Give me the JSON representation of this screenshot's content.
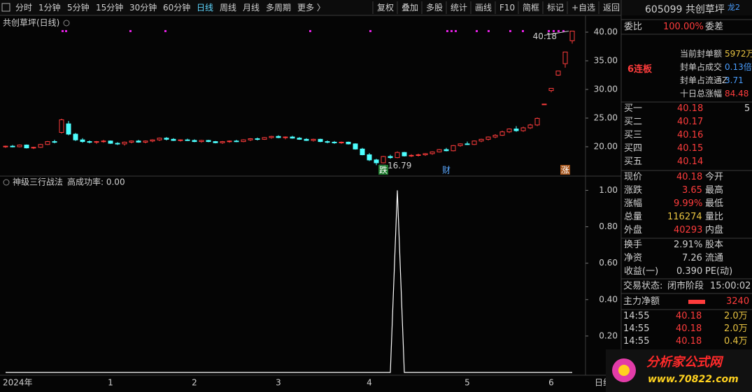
{
  "toolbar": {
    "periods": [
      "分时",
      "1分钟",
      "5分钟",
      "15分钟",
      "30分钟",
      "60分钟",
      "日线",
      "周线",
      "月线",
      "多周期",
      "更多 〉"
    ],
    "tools": [
      "复权",
      "叠加",
      "多股",
      "统计",
      "画线",
      "F10",
      "简框",
      "标记",
      "+自选",
      "返回"
    ]
  },
  "chart_data": [
    {
      "type": "candlestick",
      "title": "共创草坪(日线)",
      "ohlc": [
        [
          20.0,
          20.2,
          19.8,
          20.1
        ],
        [
          20.1,
          20.3,
          19.9,
          20.0
        ],
        [
          20.0,
          20.4,
          19.9,
          20.3
        ],
        [
          20.3,
          20.4,
          19.7,
          19.8
        ],
        [
          19.8,
          20.0,
          19.6,
          19.9
        ],
        [
          19.9,
          20.5,
          19.8,
          20.4
        ],
        [
          20.4,
          21.0,
          20.3,
          20.9
        ],
        [
          20.9,
          21.2,
          20.6,
          20.8
        ],
        [
          22.5,
          24.9,
          22.3,
          24.7
        ],
        [
          24.0,
          24.5,
          22.0,
          22.2
        ],
        [
          22.2,
          22.4,
          21.0,
          21.2
        ],
        [
          21.2,
          21.5,
          20.7,
          20.9
        ],
        [
          20.9,
          21.1,
          20.6,
          20.8
        ],
        [
          20.8,
          21.0,
          20.5,
          20.9
        ],
        [
          20.9,
          21.2,
          20.7,
          21.0
        ],
        [
          21.0,
          21.1,
          20.5,
          20.6
        ],
        [
          20.6,
          20.8,
          20.3,
          20.5
        ],
        [
          20.5,
          20.9,
          20.2,
          20.8
        ],
        [
          20.8,
          21.1,
          20.6,
          21.0
        ],
        [
          21.0,
          21.2,
          20.7,
          20.8
        ],
        [
          20.8,
          21.1,
          20.6,
          21.0
        ],
        [
          21.0,
          21.3,
          20.8,
          21.2
        ],
        [
          21.2,
          21.6,
          21.0,
          21.5
        ],
        [
          21.5,
          21.7,
          21.1,
          21.3
        ],
        [
          21.3,
          21.5,
          21.0,
          21.1
        ],
        [
          21.1,
          21.3,
          20.9,
          21.2
        ],
        [
          21.2,
          21.4,
          21.0,
          21.1
        ],
        [
          21.1,
          21.3,
          20.8,
          20.9
        ],
        [
          20.9,
          21.2,
          20.7,
          21.1
        ],
        [
          21.1,
          21.2,
          20.8,
          20.9
        ],
        [
          20.9,
          21.0,
          20.6,
          20.7
        ],
        [
          20.7,
          21.0,
          20.5,
          20.9
        ],
        [
          20.9,
          21.1,
          20.7,
          21.0
        ],
        [
          21.0,
          21.2,
          20.8,
          20.9
        ],
        [
          20.9,
          21.3,
          20.8,
          21.2
        ],
        [
          21.2,
          21.5,
          21.0,
          21.4
        ],
        [
          21.4,
          21.6,
          21.1,
          21.3
        ],
        [
          21.3,
          21.7,
          21.2,
          21.6
        ],
        [
          21.6,
          21.9,
          21.4,
          21.8
        ],
        [
          21.8,
          22.0,
          21.5,
          21.6
        ],
        [
          21.6,
          21.8,
          21.3,
          21.7
        ],
        [
          21.7,
          21.9,
          21.4,
          21.5
        ],
        [
          21.5,
          21.7,
          21.2,
          21.3
        ],
        [
          21.3,
          21.5,
          21.0,
          21.1
        ],
        [
          21.1,
          21.4,
          20.9,
          21.3
        ],
        [
          21.3,
          21.4,
          20.8,
          20.9
        ],
        [
          20.9,
          21.1,
          20.6,
          20.8
        ],
        [
          20.8,
          21.0,
          20.5,
          20.7
        ],
        [
          20.7,
          20.9,
          20.5,
          20.8
        ],
        [
          20.8,
          20.9,
          20.4,
          20.5
        ],
        [
          20.5,
          20.6,
          19.5,
          19.6
        ],
        [
          19.6,
          19.8,
          18.5,
          18.6
        ],
        [
          18.6,
          18.9,
          17.5,
          17.7
        ],
        [
          17.7,
          17.9,
          16.79,
          17.2
        ],
        [
          17.2,
          18.4,
          17.1,
          18.3
        ],
        [
          18.3,
          18.6,
          17.9,
          18.1
        ],
        [
          18.1,
          19.2,
          18.0,
          19.0
        ],
        [
          19.0,
          19.1,
          18.3,
          18.4
        ],
        [
          18.4,
          18.7,
          18.2,
          18.5
        ],
        [
          18.5,
          18.8,
          18.3,
          18.6
        ],
        [
          18.6,
          18.9,
          18.4,
          18.8
        ],
        [
          18.8,
          19.2,
          18.6,
          19.1
        ],
        [
          19.1,
          19.6,
          19.0,
          19.5
        ],
        [
          19.5,
          19.8,
          19.2,
          19.3
        ],
        [
          19.3,
          20.3,
          19.2,
          20.2
        ],
        [
          20.2,
          20.6,
          20.0,
          20.5
        ],
        [
          20.5,
          20.9,
          20.3,
          20.4
        ],
        [
          20.4,
          21.1,
          20.3,
          21.0
        ],
        [
          21.0,
          21.4,
          20.8,
          21.3
        ],
        [
          21.3,
          21.8,
          21.1,
          21.7
        ],
        [
          21.7,
          22.2,
          21.5,
          22.0
        ],
        [
          22.0,
          22.8,
          21.9,
          22.6
        ],
        [
          22.6,
          23.2,
          22.4,
          23.1
        ],
        [
          23.1,
          23.6,
          22.6,
          22.8
        ],
        [
          22.8,
          23.5,
          22.6,
          23.3
        ],
        [
          23.3,
          24.0,
          23.1,
          23.8
        ],
        [
          23.8,
          25.1,
          23.6,
          24.95
        ],
        [
          27.45,
          27.45,
          27.45,
          27.45
        ],
        [
          29.8,
          30.19,
          29.5,
          30.19
        ],
        [
          32.5,
          33.21,
          32.4,
          33.21
        ],
        [
          34.5,
          36.53,
          33.8,
          36.53
        ],
        [
          38.5,
          40.18,
          38.0,
          40.18
        ]
      ],
      "categories": [
        "2024年",
        null,
        null,
        null,
        null,
        null,
        null,
        null,
        null,
        null,
        null,
        null,
        null,
        null,
        null,
        "1",
        null,
        null,
        null,
        null,
        null,
        null,
        null,
        null,
        null,
        null,
        null,
        "2",
        null,
        null,
        null,
        null,
        null,
        null,
        null,
        null,
        null,
        null,
        null,
        "3",
        null,
        null,
        null,
        null,
        null,
        null,
        null,
        null,
        null,
        null,
        null,
        null,
        "4",
        null,
        null,
        null,
        null,
        null,
        null,
        null,
        null,
        null,
        null,
        null,
        null,
        null,
        "5",
        null,
        null,
        null,
        null,
        null,
        null,
        null,
        null,
        null,
        null,
        null,
        "6",
        null,
        null,
        null
      ],
      "corner_label": "日线",
      "up_color": "#ff3c3c",
      "down_color": "#4dffff",
      "ylim": [
        14.88,
        40.73
      ],
      "yticks": [
        {
          "value": 20,
          "label": "20.00"
        },
        {
          "value": 25,
          "label": "25.00"
        },
        {
          "value": 30,
          "label": "30.00"
        },
        {
          "value": 35,
          "label": "35.00"
        },
        {
          "value": 40,
          "label": "40.00"
        }
      ],
      "max_label": 40.18,
      "min_label": 16.79,
      "events": [
        "跌",
        "财",
        "涨"
      ]
    },
    {
      "type": "line",
      "title": "神级三行战法",
      "legend_text": "高成功率: 0.00",
      "color": "#ffffff",
      "values": [
        0,
        0,
        0,
        0,
        0,
        0,
        0,
        0,
        0,
        0,
        0,
        0,
        0,
        0,
        0,
        0,
        0,
        0,
        0,
        0,
        0,
        0,
        0,
        0,
        0,
        0,
        0,
        0,
        0,
        0,
        0,
        0,
        0,
        0,
        0,
        0,
        0,
        0,
        0,
        0,
        0,
        0,
        0,
        0,
        0,
        0,
        0,
        0,
        0,
        0,
        0,
        0,
        0,
        0,
        0,
        0,
        1,
        0,
        0,
        0,
        0,
        0,
        0,
        0,
        0,
        0,
        0,
        0,
        0,
        0,
        0,
        0,
        0,
        0,
        0,
        0,
        0,
        0,
        0,
        0,
        0,
        0
      ],
      "ylim": [
        0,
        1.04
      ],
      "yticks": [
        {
          "value": 0.2,
          "label": "0.20"
        },
        {
          "value": 0.4,
          "label": "0.40"
        },
        {
          "value": 0.6,
          "label": "0.60"
        },
        {
          "value": 0.8,
          "label": "0.80"
        },
        {
          "value": 1,
          "label": "1.00"
        }
      ]
    }
  ],
  "quote": {
    "code": "605099 共创草坪",
    "badge": "龙2",
    "weibi": [
      "委比",
      "100.00%",
      "委差"
    ],
    "streak": "6连板",
    "seal": [
      [
        "当前封单额",
        "5972万"
      ],
      [
        "封单占成交",
        "0.13倍"
      ],
      [
        "封单占流通Z",
        "3.71"
      ],
      [
        "十日总涨幅",
        "84.48"
      ]
    ],
    "book": [
      [
        "买一",
        "40.18",
        "5"
      ],
      [
        "买二",
        "40.17"
      ],
      [
        "买三",
        "40.16"
      ],
      [
        "买四",
        "40.15"
      ],
      [
        "买五",
        "40.14"
      ]
    ],
    "stats": [
      [
        "现价",
        "40.18",
        "今开"
      ],
      [
        "涨跌",
        "3.65",
        "最高"
      ],
      [
        "涨幅",
        "9.99%",
        "最低"
      ],
      [
        "总量",
        "116274",
        "量比"
      ],
      [
        "外盘",
        "40293",
        "内盘"
      ]
    ],
    "fund": [
      [
        "换手",
        "2.91%",
        "股本"
      ],
      [
        "净资",
        "7.26",
        "流通"
      ],
      [
        "收益(一)",
        "0.390",
        "PE(动)"
      ]
    ],
    "status": [
      "交易状态:",
      "闭市阶段",
      "15:00:02"
    ],
    "main_net": [
      "主力净额",
      "3240"
    ],
    "trades": [
      [
        "14:55",
        "40.18",
        "2.0万"
      ],
      [
        "14:55",
        "40.18",
        "2.0万"
      ],
      [
        "14:55",
        "40.18",
        "0.4万"
      ]
    ]
  },
  "watermark": {
    "name": "分析家公式网",
    "url": "www.70822.com"
  }
}
